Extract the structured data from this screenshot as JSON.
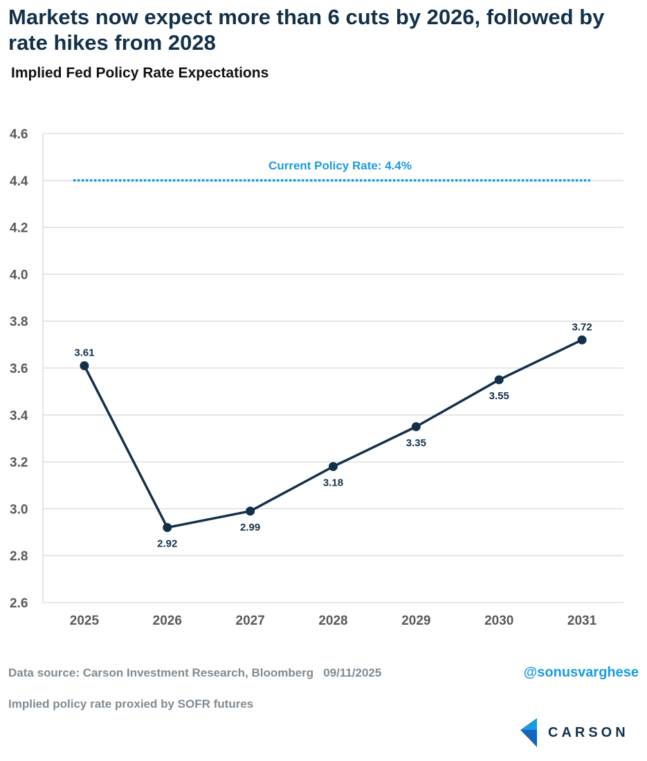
{
  "title": "Markets now expect more than 6 cuts by 2026, followed by rate hikes from 2028",
  "subtitle": "Implied Fed Policy Rate Expectations",
  "footer": {
    "source": "Data source: Carson Investment Research, Bloomberg",
    "date": "09/11/2025",
    "note": "Implied policy rate proxied by SOFR futures",
    "handle": "@sonusvarghese",
    "logo_text": "CARSON"
  },
  "colors": {
    "line": "#13304b",
    "reference": "#1a9be0",
    "grid": "#d9d9d9",
    "tick": "#595959"
  },
  "chart_data": {
    "type": "line",
    "title": "Implied Fed Policy Rate Expectations",
    "xlabel": "",
    "ylabel": "",
    "categories": [
      "2025",
      "2026",
      "2027",
      "2028",
      "2029",
      "2030",
      "2031"
    ],
    "series": [
      {
        "values": [
          3.61,
          2.92,
          2.99,
          3.18,
          3.35,
          3.55,
          3.72
        ]
      }
    ],
    "data_labels": [
      "3.61",
      "2.92",
      "2.99",
      "3.18",
      "3.35",
      "3.55",
      "3.72"
    ],
    "ylim": [
      2.6,
      4.6
    ],
    "yticks": [
      "2.6",
      "2.8",
      "3.0",
      "3.2",
      "3.4",
      "3.6",
      "3.8",
      "4.0",
      "4.2",
      "4.4",
      "4.6"
    ],
    "grid": true,
    "reference_line": {
      "value": 4.4,
      "label": "Current Policy Rate: 4.4%",
      "style": "dotted"
    }
  }
}
